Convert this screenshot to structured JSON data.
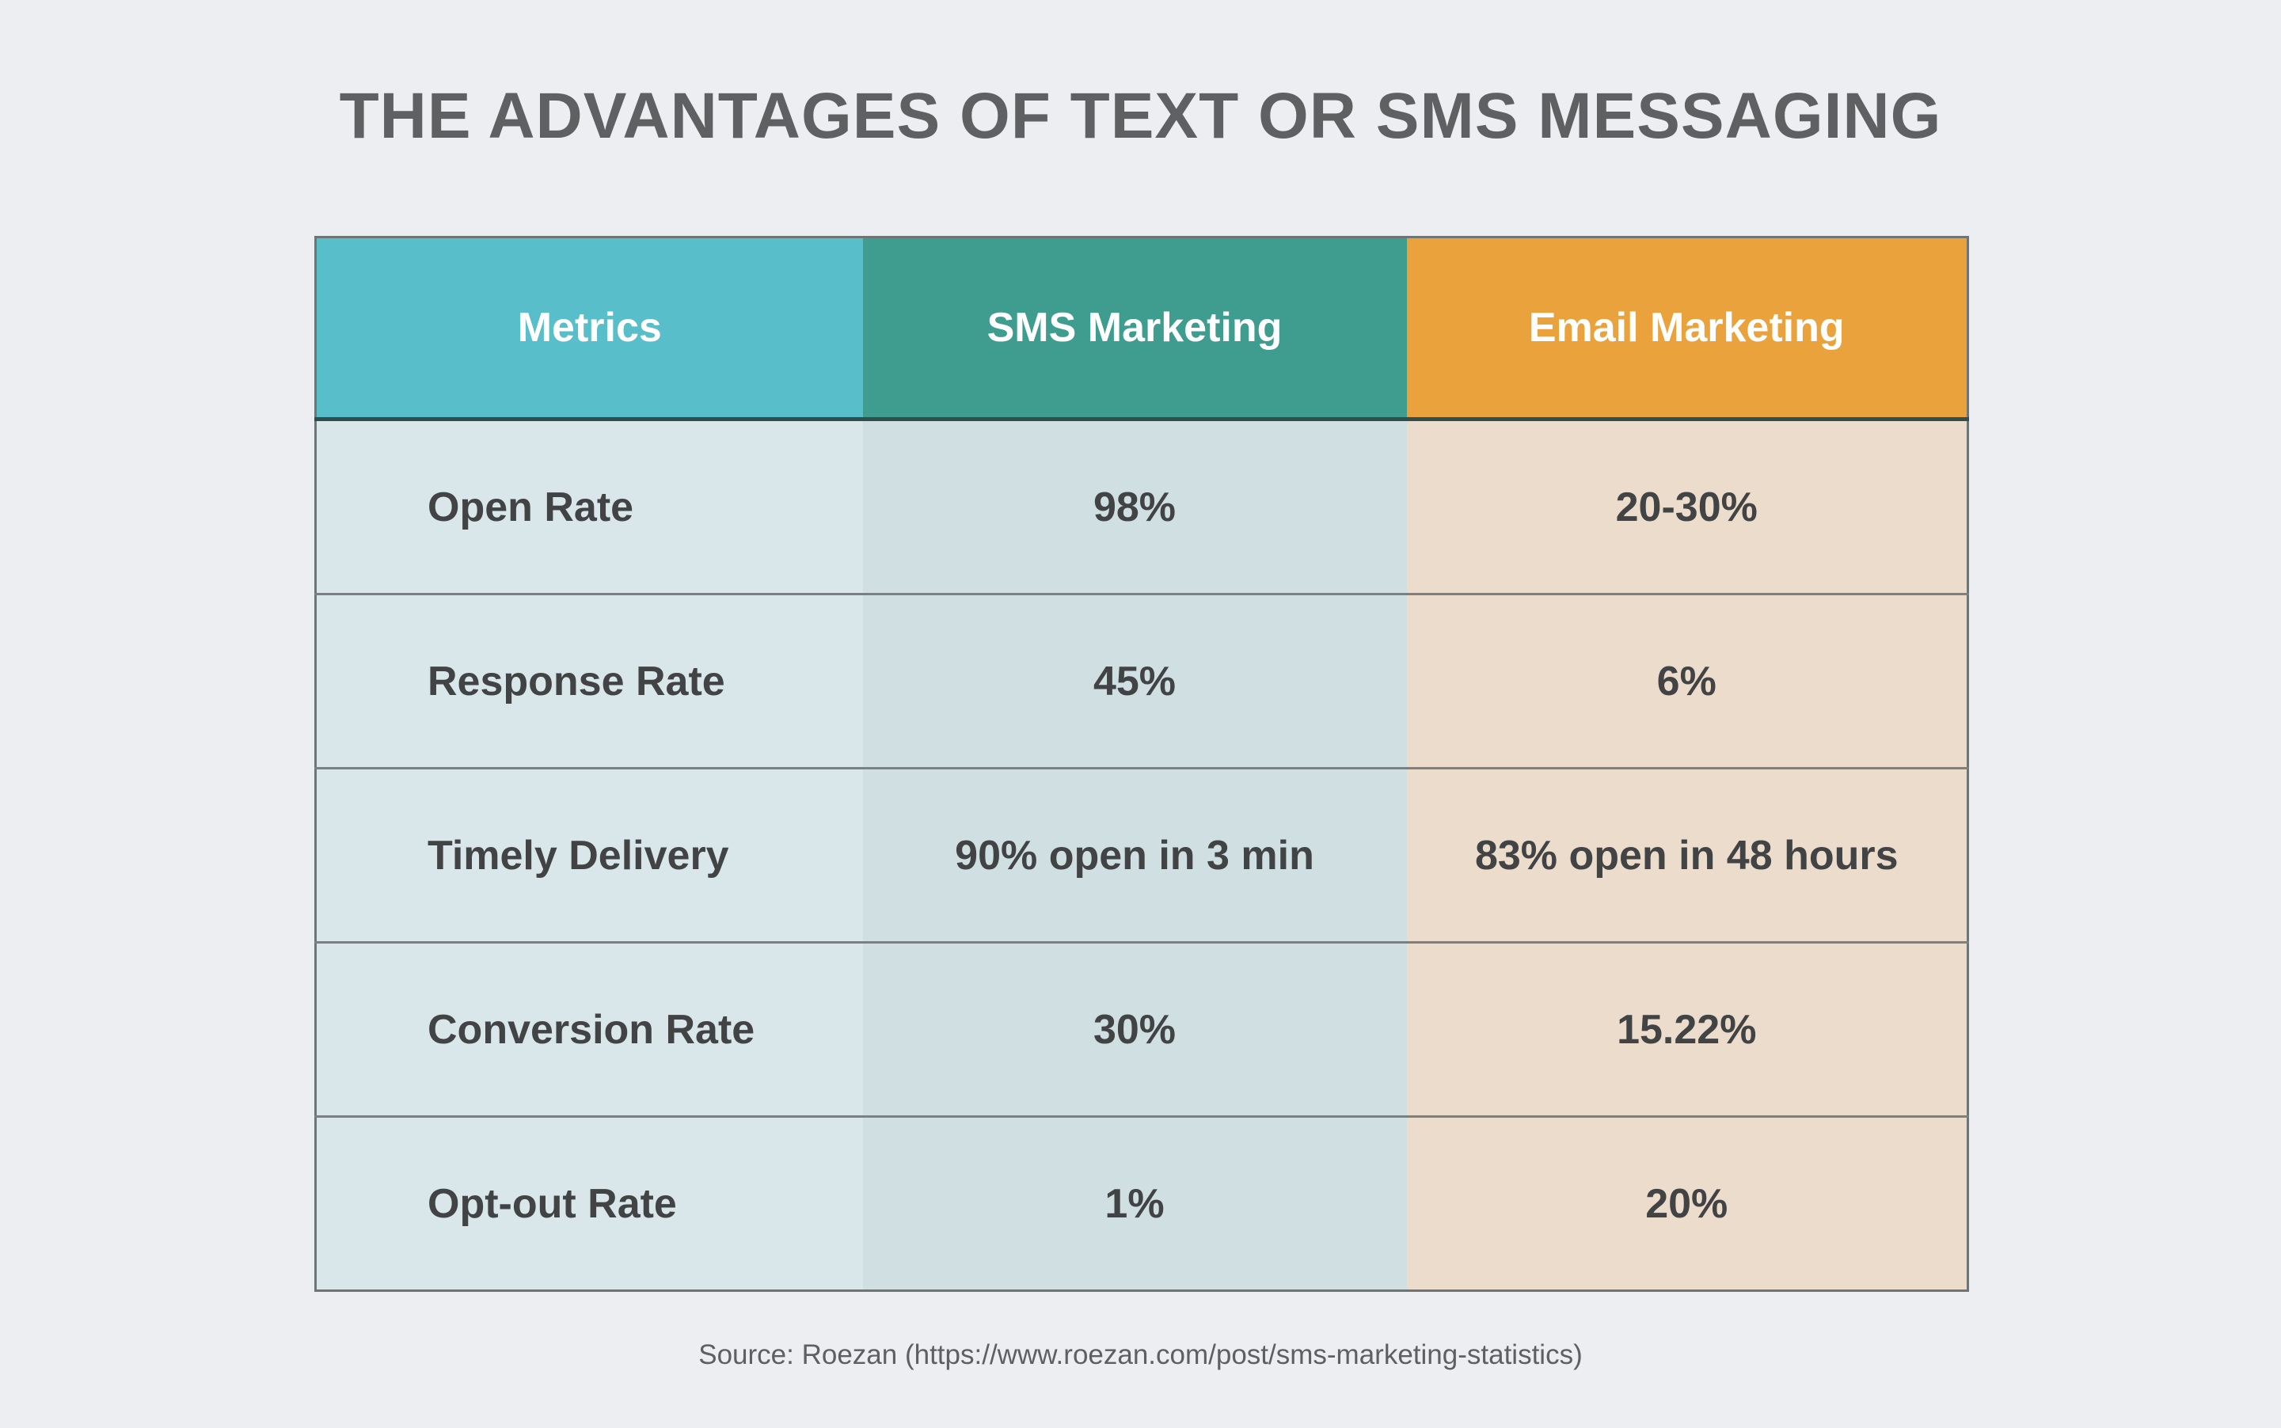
{
  "title": "THE ADVANTAGES OF TEXT OR SMS MESSAGING",
  "table": {
    "headers": [
      "Metrics",
      "SMS Marketing",
      "Email Marketing"
    ],
    "rows": [
      [
        "Open Rate",
        "98%",
        "20-30%"
      ],
      [
        "Response Rate",
        "45%",
        "6%"
      ],
      [
        "Timely Delivery",
        "90% open in 3 min",
        "83% open in 48 hours"
      ],
      [
        "Conversion Rate",
        "30%",
        "15.22%"
      ],
      [
        "Opt-out Rate",
        "1%",
        "20%"
      ]
    ]
  },
  "source": "Source: Roezan (https://www.roezan.com/post/sms-marketing-statistics)",
  "colors": {
    "metrics_header": "#58bec9",
    "sms_header": "#3e9d8e",
    "email_header": "#eaa33c",
    "background": "#eceef2"
  }
}
